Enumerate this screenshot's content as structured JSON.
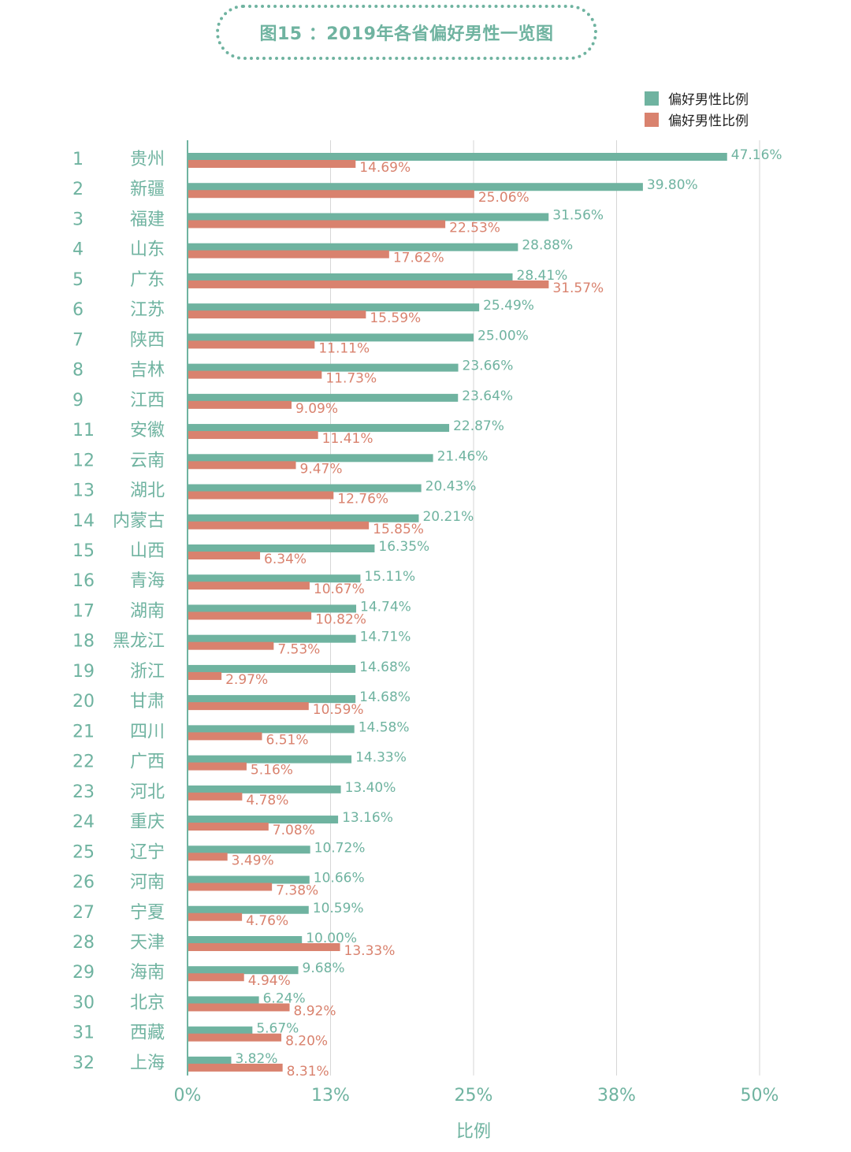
{
  "title": "图15 ：2019年各省偏好男性一览图",
  "chart_data": {
    "type": "bar",
    "orientation": "horizontal",
    "xlabel": "比例",
    "ylabel": "",
    "xlim": [
      0,
      50
    ],
    "xticks": [
      0,
      12.5,
      25,
      37.5,
      50
    ],
    "xtick_labels": [
      "0%",
      "13%",
      "25%",
      "38%",
      "50%"
    ],
    "grid": "vertical",
    "legend_position": "top-right",
    "ranks": [
      "1",
      "2",
      "3",
      "4",
      "5",
      "6",
      "7",
      "8",
      "9",
      "11",
      "12",
      "13",
      "14",
      "15",
      "16",
      "17",
      "18",
      "19",
      "20",
      "21",
      "22",
      "23",
      "24",
      "25",
      "26",
      "27",
      "28",
      "29",
      "30",
      "31",
      "32"
    ],
    "categories": [
      "贵州",
      "新疆",
      "福建",
      "山东",
      "广东",
      "江苏",
      "陕西",
      "吉林",
      "江西",
      "安徽",
      "云南",
      "湖北",
      "内蒙古",
      "山西",
      "青海",
      "湖南",
      "黑龙江",
      "浙江",
      "甘肃",
      "四川",
      "广西",
      "河北",
      "重庆",
      "辽宁",
      "河南",
      "宁夏",
      "天津",
      "海南",
      "北京",
      "西藏",
      "上海"
    ],
    "series": [
      {
        "name": "偏好男性比例",
        "color": "#6fb3a0",
        "values": [
          47.16,
          39.8,
          31.56,
          28.88,
          28.41,
          25.49,
          25.0,
          23.66,
          23.64,
          22.87,
          21.46,
          20.43,
          20.21,
          16.35,
          15.11,
          14.74,
          14.71,
          14.68,
          14.68,
          14.58,
          14.33,
          13.4,
          13.16,
          10.72,
          10.66,
          10.59,
          10.0,
          9.68,
          6.24,
          5.67,
          3.82
        ],
        "labels": [
          "47.16%",
          "39.80%",
          "31.56%",
          "28.88%",
          "28.41%",
          "25.49%",
          "25.00%",
          "23.66%",
          "23.64%",
          "22.87%",
          "21.46%",
          "20.43%",
          "20.21%",
          "16.35%",
          "15.11%",
          "14.74%",
          "14.71%",
          "14.68%",
          "14.68%",
          "14.58%",
          "14.33%",
          "13.40%",
          "13.16%",
          "10.72%",
          "10.66%",
          "10.59%",
          "10.00%",
          "9.68%",
          "6.24%",
          "5.67%",
          "3.82%"
        ]
      },
      {
        "name": "偏好男性比例",
        "color": "#d9826e",
        "values": [
          14.69,
          25.06,
          22.53,
          17.62,
          31.57,
          15.59,
          11.11,
          11.73,
          9.09,
          11.41,
          9.47,
          12.76,
          15.85,
          6.34,
          10.67,
          10.82,
          7.53,
          2.97,
          10.59,
          6.51,
          5.16,
          4.78,
          7.08,
          3.49,
          7.38,
          4.76,
          13.33,
          4.94,
          8.92,
          8.2,
          8.31
        ],
        "labels": [
          "14.69%",
          "25.06%",
          "22.53%",
          "17.62%",
          "31.57%",
          "15.59%",
          "11.11%",
          "11.73%",
          "9.09%",
          "11.41%",
          "9.47%",
          "12.76%",
          "15.85%",
          "6.34%",
          "10.67%",
          "10.82%",
          "7.53%",
          "2.97%",
          "10.59%",
          "6.51%",
          "5.16%",
          "4.78%",
          "7.08%",
          "3.49%",
          "7.38%",
          "4.76%",
          "13.33%",
          "4.94%",
          "8.92%",
          "8.20%",
          "8.31%"
        ]
      }
    ]
  }
}
